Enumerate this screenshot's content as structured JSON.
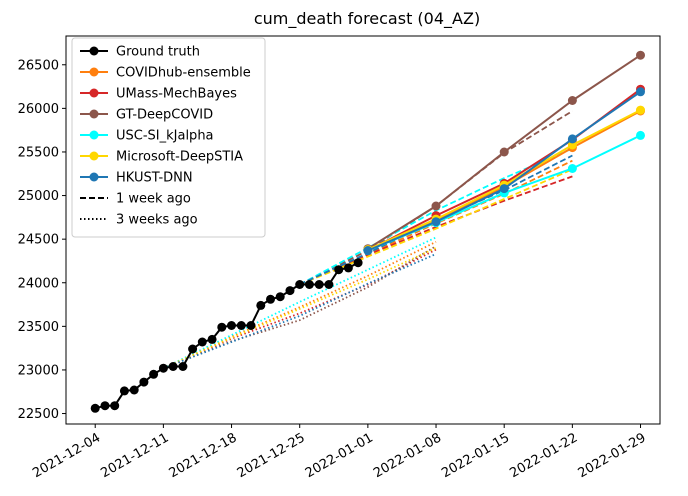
{
  "chart_data": {
    "type": "line",
    "title": "cum_death forecast (04_AZ)",
    "xlabel": "",
    "ylabel": "",
    "x_ticks": [
      "2021-12-04",
      "2021-12-11",
      "2021-12-18",
      "2021-12-25",
      "2022-01-01",
      "2022-01-08",
      "2022-01-15",
      "2022-01-22",
      "2022-01-29"
    ],
    "y_ticks": [
      22500,
      23000,
      23500,
      24000,
      24500,
      25000,
      25500,
      26000,
      26500
    ],
    "xlim": [
      "2021-12-01",
      "2022-01-31"
    ],
    "ylim": [
      22380,
      26830
    ],
    "grid": false,
    "legend_position": "upper left",
    "legend": [
      {
        "label": "Ground truth",
        "color": "#000000",
        "style": "solid",
        "marker": true
      },
      {
        "label": "COVIDhub-ensemble",
        "color": "#ff7f0e",
        "style": "solid",
        "marker": true
      },
      {
        "label": "UMass-MechBayes",
        "color": "#d62728",
        "style": "solid",
        "marker": true
      },
      {
        "label": "GT-DeepCOVID",
        "color": "#8c564b",
        "style": "solid",
        "marker": true
      },
      {
        "label": "USC-SI_kJalpha",
        "color": "#00ffff",
        "style": "solid",
        "marker": true
      },
      {
        "label": "Microsoft-DeepSTIA",
        "color": "#ffd700",
        "style": "solid",
        "marker": true
      },
      {
        "label": "HKUST-DNN",
        "color": "#1f77b4",
        "style": "solid",
        "marker": true
      },
      {
        "label": "1 week ago",
        "color": "#000000",
        "style": "dashed",
        "marker": false
      },
      {
        "label": "3 weeks ago",
        "color": "#000000",
        "style": "dotted",
        "marker": false
      }
    ],
    "ground_truth": {
      "name": "Ground truth",
      "color": "#000000",
      "x": [
        "2021-12-04",
        "2021-12-05",
        "2021-12-06",
        "2021-12-07",
        "2021-12-08",
        "2021-12-09",
        "2021-12-10",
        "2021-12-11",
        "2021-12-12",
        "2021-12-13",
        "2021-12-14",
        "2021-12-15",
        "2021-12-16",
        "2021-12-17",
        "2021-12-18",
        "2021-12-19",
        "2021-12-20",
        "2021-12-21",
        "2021-12-22",
        "2021-12-23",
        "2021-12-24",
        "2021-12-25",
        "2021-12-26",
        "2021-12-27",
        "2021-12-28",
        "2021-12-29",
        "2021-12-30",
        "2021-12-31"
      ],
      "y": [
        22560,
        22590,
        22590,
        22760,
        22770,
        22860,
        22950,
        23020,
        23040,
        23040,
        23240,
        23320,
        23350,
        23490,
        23510,
        23510,
        23510,
        23740,
        23810,
        23840,
        23910,
        23980,
        23980,
        23980,
        23980,
        24150,
        24170,
        24230
      ]
    },
    "forecasts": [
      {
        "name": "COVIDhub-ensemble",
        "color": "#ff7f0e",
        "style": "solid",
        "marker": true,
        "x": [
          "2022-01-01",
          "2022-01-08",
          "2022-01-15",
          "2022-01-22",
          "2022-01-29"
        ],
        "y": [
          24380,
          24720,
          25100,
          25550,
          25970
        ]
      },
      {
        "name": "UMass-MechBayes",
        "color": "#d62728",
        "style": "solid",
        "marker": true,
        "x": [
          "2022-01-01",
          "2022-01-08",
          "2022-01-15",
          "2022-01-22",
          "2022-01-29"
        ],
        "y": [
          24370,
          24770,
          25140,
          25640,
          26220
        ]
      },
      {
        "name": "GT-DeepCOVID",
        "color": "#8c564b",
        "style": "solid",
        "marker": true,
        "x": [
          "2022-01-01",
          "2022-01-08",
          "2022-01-15",
          "2022-01-22",
          "2022-01-29"
        ],
        "y": [
          24390,
          24880,
          25500,
          26090,
          26610
        ]
      },
      {
        "name": "USC-SI_kJalpha",
        "color": "#00ffff",
        "style": "solid",
        "marker": true,
        "x": [
          "2022-01-01",
          "2022-01-08",
          "2022-01-15",
          "2022-01-22",
          "2022-01-29"
        ],
        "y": [
          24370,
          24690,
          25030,
          25310,
          25690
        ]
      },
      {
        "name": "Microsoft-DeepSTIA",
        "color": "#ffd700",
        "style": "solid",
        "marker": true,
        "x": [
          "2022-01-01",
          "2022-01-08",
          "2022-01-15",
          "2022-01-22",
          "2022-01-29"
        ],
        "y": [
          24380,
          24730,
          25120,
          25580,
          25980
        ]
      },
      {
        "name": "HKUST-DNN",
        "color": "#1f77b4",
        "style": "solid",
        "marker": true,
        "x": [
          "2022-01-01",
          "2022-01-08",
          "2022-01-15",
          "2022-01-22",
          "2022-01-29"
        ],
        "y": [
          24370,
          24700,
          25080,
          25650,
          26190
        ]
      },
      {
        "name": "COVIDhub-ensemble",
        "color": "#ff7f0e",
        "style": "dashed",
        "marker": false,
        "x": [
          "2021-12-25",
          "2022-01-01",
          "2022-01-08",
          "2022-01-15",
          "2022-01-22"
        ],
        "y": [
          23980,
          24330,
          24680,
          25020,
          25400
        ]
      },
      {
        "name": "UMass-MechBayes",
        "color": "#d62728",
        "style": "dashed",
        "marker": false,
        "x": [
          "2021-12-25",
          "2022-01-01",
          "2022-01-08",
          "2022-01-15",
          "2022-01-22"
        ],
        "y": [
          23980,
          24320,
          24640,
          24940,
          25220
        ]
      },
      {
        "name": "GT-DeepCOVID",
        "color": "#8c564b",
        "style": "dashed",
        "marker": false,
        "x": [
          "2021-12-25",
          "2022-01-01",
          "2022-01-08",
          "2022-01-15",
          "2022-01-22"
        ],
        "y": [
          23980,
          24370,
          24880,
          25490,
          25970
        ]
      },
      {
        "name": "USC-SI_kJalpha",
        "color": "#00ffff",
        "style": "dashed",
        "marker": false,
        "x": [
          "2021-12-25",
          "2022-01-01",
          "2022-01-08",
          "2022-01-15",
          "2022-01-22"
        ],
        "y": [
          23980,
          24400,
          24830,
          25200,
          25540
        ]
      },
      {
        "name": "Microsoft-DeepSTIA",
        "color": "#ffd700",
        "style": "dashed",
        "marker": false,
        "x": [
          "2021-12-25",
          "2022-01-01",
          "2022-01-08",
          "2022-01-15",
          "2022-01-22"
        ],
        "y": [
          23980,
          24300,
          24620,
          24960,
          25300
        ]
      },
      {
        "name": "HKUST-DNN",
        "color": "#1f77b4",
        "style": "dashed",
        "marker": false,
        "x": [
          "2021-12-25",
          "2022-01-01",
          "2022-01-08",
          "2022-01-15",
          "2022-01-22"
        ],
        "y": [
          23980,
          24340,
          24720,
          25060,
          25460
        ]
      },
      {
        "name": "COVIDhub-ensemble",
        "color": "#ff7f0e",
        "style": "dotted",
        "marker": false,
        "x": [
          "2021-12-11",
          "2021-12-18",
          "2021-12-25",
          "2022-01-01",
          "2022-01-08"
        ],
        "y": [
          23020,
          23380,
          23720,
          24080,
          24470
        ]
      },
      {
        "name": "UMass-MechBayes",
        "color": "#d62728",
        "style": "dotted",
        "marker": false,
        "x": [
          "2021-12-11",
          "2021-12-18",
          "2021-12-25",
          "2022-01-01",
          "2022-01-08"
        ],
        "y": [
          23020,
          23360,
          23650,
          23980,
          24380
        ]
      },
      {
        "name": "GT-DeepCOVID",
        "color": "#8c564b",
        "style": "dotted",
        "marker": false,
        "x": [
          "2021-12-11",
          "2021-12-18",
          "2021-12-25",
          "2022-01-01",
          "2022-01-08"
        ],
        "y": [
          23020,
          23330,
          23570,
          23950,
          24420
        ]
      },
      {
        "name": "USC-SI_kJalpha",
        "color": "#00ffff",
        "style": "dotted",
        "marker": false,
        "x": [
          "2021-12-11",
          "2021-12-18",
          "2021-12-25",
          "2022-01-01",
          "2022-01-08"
        ],
        "y": [
          23020,
          23400,
          23780,
          24150,
          24520
        ]
      },
      {
        "name": "Microsoft-DeepSTIA",
        "color": "#ffd700",
        "style": "dotted",
        "marker": false,
        "x": [
          "2021-12-11",
          "2021-12-18",
          "2021-12-25",
          "2022-01-01",
          "2022-01-08"
        ],
        "y": [
          23020,
          23370,
          23700,
          24040,
          24400
        ]
      },
      {
        "name": "HKUST-DNN",
        "color": "#1f77b4",
        "style": "dotted",
        "marker": false,
        "x": [
          "2021-12-11",
          "2021-12-18",
          "2021-12-25",
          "2022-01-01",
          "2022-01-08"
        ],
        "y": [
          23020,
          23320,
          23620,
          23990,
          24330
        ]
      }
    ]
  }
}
